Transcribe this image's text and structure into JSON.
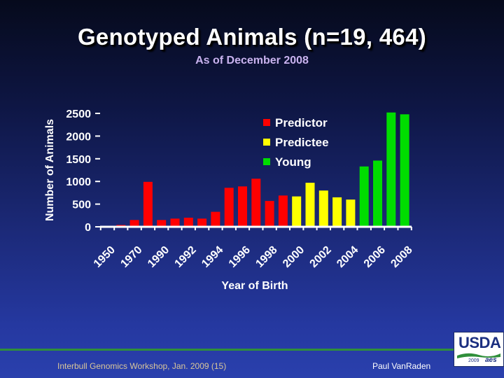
{
  "slide": {
    "title": "Genotyped Animals (n=19, 464)",
    "subtitle": "As of December 2008",
    "footer_left": "Interbull Genomics Workshop, Jan. 2009 (15)",
    "footer_right": "Paul VanRaden",
    "logo_text": "USDA",
    "logo_year": "2009",
    "logo_mark": "aes"
  },
  "chart_data": {
    "type": "bar",
    "xlabel": "Year of Birth",
    "ylabel": "Number of Animals",
    "ylim": [
      0,
      2500
    ],
    "yticks": [
      0,
      500,
      1000,
      1500,
      2000,
      2500
    ],
    "xtick_labels": [
      "1950",
      "1970",
      "1990",
      "1992",
      "1994",
      "1996",
      "1998",
      "2000",
      "2002",
      "2004",
      "2006",
      "2008"
    ],
    "grid": false,
    "legend_position": "top-right",
    "series": [
      {
        "name": "Predictor",
        "color": "#ff0000",
        "values": [
          0,
          40,
          150,
          990,
          150,
          180,
          200,
          180,
          330,
          860,
          890,
          1060,
          570,
          690,
          0,
          0,
          0,
          0,
          0,
          0,
          0,
          0,
          0
        ]
      },
      {
        "name": "Predictee",
        "color": "#ffff00",
        "values": [
          0,
          0,
          0,
          0,
          0,
          0,
          0,
          0,
          0,
          0,
          0,
          0,
          0,
          0,
          670,
          970,
          800,
          650,
          600,
          0,
          0,
          0,
          0
        ]
      },
      {
        "name": "Young",
        "color": "#00dd00",
        "values": [
          0,
          0,
          0,
          0,
          0,
          0,
          0,
          0,
          0,
          0,
          0,
          0,
          0,
          0,
          0,
          0,
          0,
          0,
          0,
          1330,
          1460,
          2520,
          2480
        ]
      }
    ]
  }
}
